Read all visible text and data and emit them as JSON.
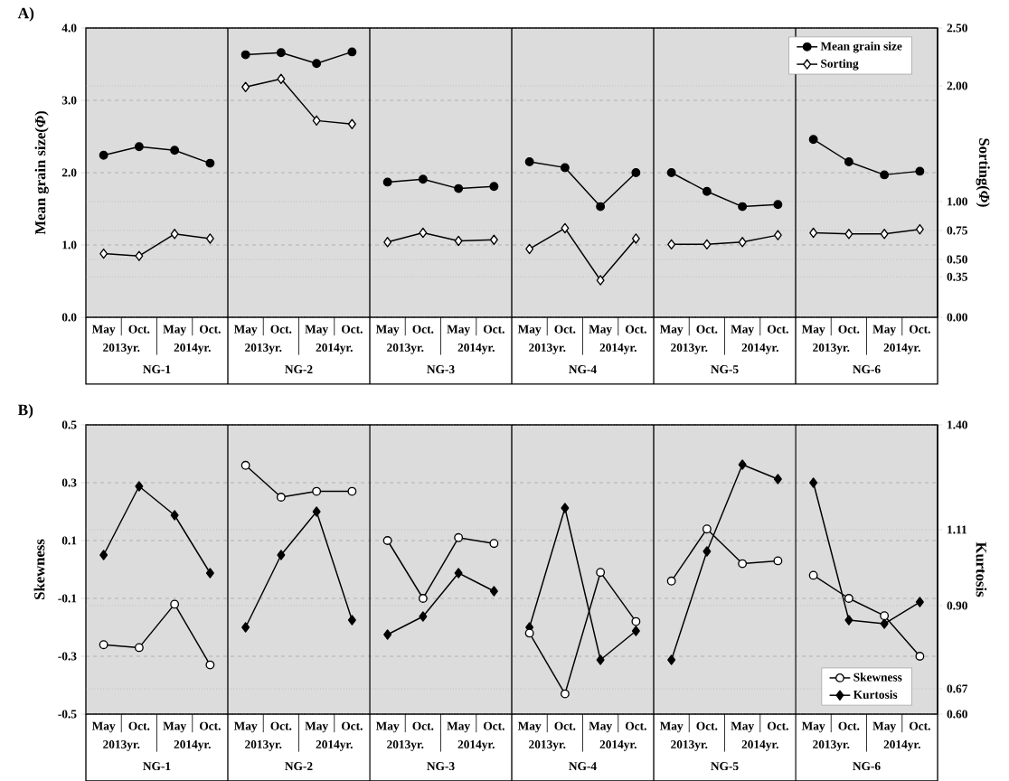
{
  "chart_data": [
    {
      "type": "line",
      "title": "A)",
      "ylabel": "Mean grain size(*Φ*)",
      "y2label": "Sorting(*Φ*)",
      "categories": [
        "May",
        "Oct.",
        "May",
        "Oct.",
        "May",
        "Oct.",
        "May",
        "Oct.",
        "May",
        "Oct.",
        "May",
        "Oct.",
        "May",
        "Oct.",
        "May",
        "Oct.",
        "May",
        "Oct.",
        "May",
        "Oct.",
        "May",
        "Oct.",
        "May",
        "Oct."
      ],
      "annotations": [
        "2013yr.",
        "2014yr.",
        "NG-1",
        "2013yr.",
        "2014yr.",
        "NG-2",
        "2013yr.",
        "2014yr.",
        "NG-3",
        "2013yr.",
        "2014yr.",
        "NG-4",
        "2013yr.",
        "2014yr.",
        "NG-5",
        "2013yr.",
        "2014yr.",
        "NG-6"
      ],
      "ylim": [
        0,
        4
      ],
      "yticks": [
        {
          "value": 0,
          "label": "0.0"
        },
        {
          "value": 1,
          "label": "1.0"
        },
        {
          "value": 2,
          "label": "2.0"
        },
        {
          "value": 3,
          "label": "3.0"
        },
        {
          "value": 4,
          "label": "4.0"
        }
      ],
      "y2lim": [
        0,
        2.5
      ],
      "y2ticks": [
        {
          "value": 0,
          "label": "0.00"
        },
        0.35,
        {
          "value": 0.5,
          "label": "0.50"
        },
        0.75,
        {
          "value": 1,
          "label": "1.00"
        },
        {
          "value": 2,
          "label": "2.00"
        },
        {
          "value": 2.5,
          "label": "2.50"
        }
      ],
      "grid": true,
      "legend": "top right",
      "line_style": "solid",
      "series": [
        {
          "name": "Mean grain size",
          "color": "#000000",
          "marker": "circle",
          "values": [
            2.24,
            2.36,
            2.31,
            2.13,
            3.63,
            3.66,
            3.51,
            3.67,
            1.87,
            1.91,
            1.78,
            1.81,
            2.15,
            2.07,
            1.53,
            2.0,
            2.0,
            1.74,
            1.53,
            1.56,
            2.46,
            2.15,
            1.97,
            2.02
          ]
        },
        {
          "name": "Sorting",
          "color": "#ffffff",
          "marker": "diamond",
          "axis": "y2",
          "values": [
            0.55,
            0.53,
            0.72,
            0.68,
            1.99,
            2.06,
            1.7,
            1.67,
            0.65,
            0.73,
            0.66,
            0.67,
            0.59,
            0.77,
            0.32,
            0.68,
            0.63,
            0.63,
            0.65,
            0.71,
            0.73,
            0.72,
            0.72,
            0.76
          ]
        }
      ]
    },
    {
      "type": "line",
      "title": "B)",
      "ylabel": "Skewness",
      "y2label": "Kurtosis",
      "categories": [
        "May",
        "Oct.",
        "May",
        "Oct.",
        "May",
        "Oct.",
        "May",
        "Oct.",
        "May",
        "Oct.",
        "May",
        "Oct.",
        "May",
        "Oct.",
        "May",
        "Oct.",
        "May",
        "Oct.",
        "May",
        "Oct.",
        "May",
        "Oct.",
        "May",
        "Oct."
      ],
      "annotations": [
        "2013yr.",
        "2014yr.",
        "NG-1",
        "2013yr.",
        "2014yr.",
        "NG-2",
        "2013yr.",
        "2014yr.",
        "NG-3",
        "2013yr.",
        "2014yr.",
        "NG-4",
        "2013yr.",
        "2014yr.",
        "NG-5",
        "2013yr.",
        "2014yr.",
        "NG-6"
      ],
      "ylim": [
        -0.5,
        0.5
      ],
      "yticks": [
        -0.5,
        -0.3,
        -0.1,
        0.1,
        0.3,
        0.5
      ],
      "y2lim": [
        0.6,
        1.4
      ],
      "y2ticks": [
        {
          "value": 0.6,
          "label": "0.60"
        },
        0.67,
        {
          "value": 0.9,
          "label": "0.90"
        },
        1.11,
        {
          "value": 1.4,
          "label": "1.40"
        }
      ],
      "grid": true,
      "legend": "bottom right",
      "line_style": "solid",
      "series": [
        {
          "name": "Skewness",
          "color": "#ffffff",
          "marker": "circle",
          "values": [
            -0.26,
            -0.27,
            -0.12,
            -0.33,
            0.36,
            0.25,
            0.27,
            0.27,
            0.1,
            -0.1,
            0.11,
            0.09,
            -0.22,
            -0.43,
            -0.01,
            -0.18,
            -0.04,
            0.14,
            0.02,
            0.03,
            -0.02,
            -0.1,
            -0.16,
            -0.3
          ]
        },
        {
          "name": "Kurtosis",
          "color": "#000000",
          "marker": "diamond",
          "axis": "y2",
          "values": [
            1.04,
            1.23,
            1.15,
            0.99,
            0.84,
            1.04,
            1.16,
            0.86,
            0.82,
            0.87,
            0.99,
            0.94,
            0.84,
            1.17,
            0.75,
            0.83,
            0.75,
            1.05,
            1.29,
            1.25,
            1.24,
            0.86,
            0.85,
            0.91
          ]
        }
      ]
    }
  ]
}
